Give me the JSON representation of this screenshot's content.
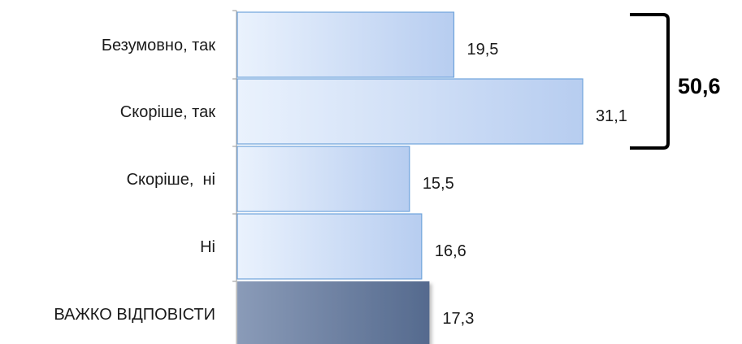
{
  "chart_data": {
    "type": "bar",
    "orientation": "horizontal",
    "categories": [
      "Безумовно, так",
      "Скоріше, так",
      "Скоріше,  ні",
      "Ні",
      "ВАЖКО ВІДПОВІСТИ"
    ],
    "values": [
      19.5,
      31.1,
      15.5,
      16.6,
      17.3
    ],
    "value_labels": [
      "19,5",
      "31,1",
      "15,5",
      "16,6",
      "17,3"
    ],
    "title": "",
    "xlabel": "",
    "ylabel": "",
    "xlim": [
      0,
      31.1
    ],
    "grid": false,
    "legend": "none",
    "highlight_index": 4,
    "bracket": {
      "label": "50,6",
      "covers_categories": [
        "Безумовно, так",
        "Скоріше, так"
      ]
    }
  },
  "colors": {
    "bar_light_start": "#eaf2fd",
    "bar_light_end": "#b7cdf0",
    "bar_border": "#6fa3db",
    "bar_dark_start": "#8a9bb8",
    "bar_dark_end": "#556a8e",
    "axis": "#a6a6a6",
    "text": "#1a1a1a"
  }
}
